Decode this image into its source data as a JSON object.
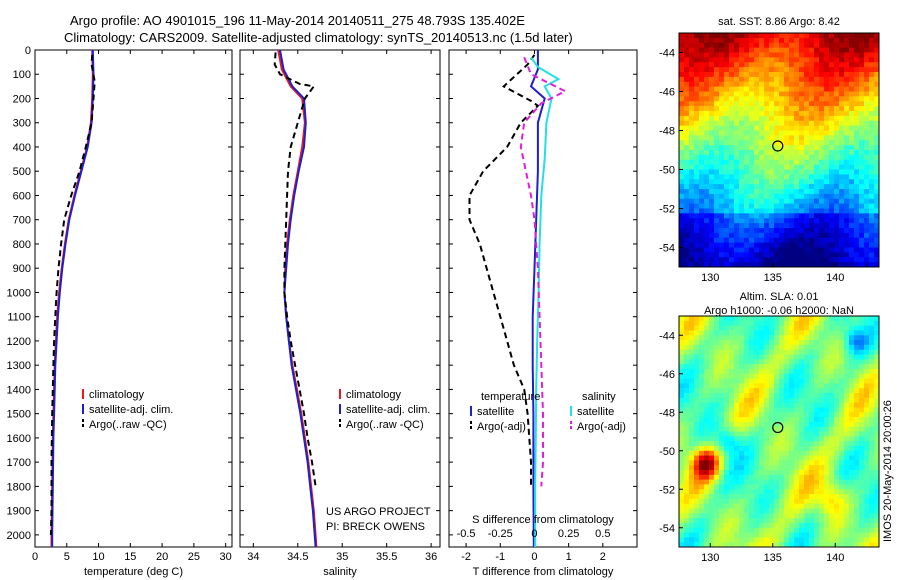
{
  "header": {
    "title_line1": "Argo profile: AO 4901015_196 11-May-2014 20140511_275 48.793S 135.402E",
    "title_line2": "Climatology: CARS2009. Satellite-adjusted climatology: synTS_20140513.nc (1.5d later)"
  },
  "side_stamp": "IMOS 20-May-2014 20:00:26",
  "chart_data": [
    {
      "type": "line",
      "id": "temperature",
      "xlabel": "temperature (deg C)",
      "ylabel": "",
      "xlim": [
        0,
        31
      ],
      "ylim": [
        2050,
        0
      ],
      "xticks": [
        0,
        5,
        10,
        15,
        20,
        25,
        30
      ],
      "yticks": [
        0,
        100,
        200,
        300,
        400,
        500,
        600,
        700,
        800,
        900,
        1000,
        1100,
        1200,
        1300,
        1400,
        1500,
        1600,
        1700,
        1800,
        1900,
        2000
      ],
      "legend": [
        "climatology",
        "satellite-adj. clim.",
        "Argo(..raw -QC)"
      ],
      "legend_position": "lower-center",
      "series": [
        {
          "name": "climatology",
          "color": "#e8191e",
          "style": "solid",
          "points": [
            [
              9.0,
              0
            ],
            [
              9.1,
              100
            ],
            [
              9.0,
              200
            ],
            [
              8.8,
              300
            ],
            [
              8.2,
              400
            ],
            [
              7.2,
              500
            ],
            [
              6.2,
              600
            ],
            [
              5.3,
              700
            ],
            [
              4.7,
              800
            ],
            [
              4.2,
              900
            ],
            [
              3.8,
              1000
            ],
            [
              3.5,
              1100
            ],
            [
              3.3,
              1200
            ],
            [
              3.1,
              1300
            ],
            [
              3.0,
              1400
            ],
            [
              2.9,
              1500
            ],
            [
              2.8,
              1600
            ],
            [
              2.7,
              1800
            ],
            [
              2.6,
              2000
            ],
            [
              2.6,
              2050
            ]
          ]
        },
        {
          "name": "satellite-adj. clim.",
          "color": "#1f1fcc",
          "style": "solid",
          "points": [
            [
              9.1,
              0
            ],
            [
              9.2,
              100
            ],
            [
              9.1,
              200
            ],
            [
              8.9,
              300
            ],
            [
              8.3,
              400
            ],
            [
              7.3,
              500
            ],
            [
              6.3,
              600
            ],
            [
              5.4,
              700
            ],
            [
              4.8,
              800
            ],
            [
              4.3,
              900
            ],
            [
              3.9,
              1000
            ],
            [
              3.6,
              1100
            ],
            [
              3.4,
              1200
            ],
            [
              3.2,
              1300
            ],
            [
              3.1,
              1400
            ],
            [
              3.0,
              1500
            ],
            [
              2.9,
              1600
            ],
            [
              2.8,
              1800
            ],
            [
              2.7,
              2000
            ],
            [
              2.7,
              2050
            ]
          ]
        },
        {
          "name": "Argo(..raw -QC)",
          "color": "#000000",
          "style": "dashed",
          "points": [
            [
              9.0,
              20
            ],
            [
              8.9,
              60
            ],
            [
              9.4,
              130
            ],
            [
              9.2,
              200
            ],
            [
              8.9,
              300
            ],
            [
              8.0,
              400
            ],
            [
              7.0,
              500
            ],
            [
              5.7,
              600
            ],
            [
              4.6,
              700
            ],
            [
              4.1,
              800
            ],
            [
              3.7,
              900
            ],
            [
              3.4,
              1000
            ],
            [
              3.2,
              1100
            ],
            [
              3.0,
              1200
            ],
            [
              2.9,
              1300
            ],
            [
              2.8,
              1400
            ],
            [
              2.7,
              1500
            ],
            [
              2.6,
              1700
            ],
            [
              2.6,
              1900
            ],
            [
              2.5,
              2000
            ]
          ]
        }
      ]
    },
    {
      "type": "line",
      "id": "salinity",
      "xlabel": "salinity",
      "xlim": [
        33.85,
        36.1
      ],
      "ylim": [
        2050,
        0
      ],
      "xticks": [
        34,
        34.5,
        35,
        35.5,
        36
      ],
      "legend": [
        "climatology",
        "satellite-adj. clim.",
        "Argo(..raw -QC)"
      ],
      "legend_position": "lower-right",
      "annotations": [
        "US ARGO PROJECT",
        "PI: BRECK OWENS"
      ],
      "series": [
        {
          "name": "climatology",
          "color": "#e8191e",
          "style": "solid",
          "points": [
            [
              34.28,
              0
            ],
            [
              34.32,
              80
            ],
            [
              34.42,
              150
            ],
            [
              34.55,
              200
            ],
            [
              34.58,
              300
            ],
            [
              34.55,
              400
            ],
            [
              34.5,
              500
            ],
            [
              34.45,
              600
            ],
            [
              34.41,
              700
            ],
            [
              34.38,
              800
            ],
            [
              34.36,
              900
            ],
            [
              34.35,
              1000
            ],
            [
              34.37,
              1100
            ],
            [
              34.4,
              1200
            ],
            [
              34.44,
              1300
            ],
            [
              34.49,
              1400
            ],
            [
              34.54,
              1500
            ],
            [
              34.58,
              1600
            ],
            [
              34.62,
              1700
            ],
            [
              34.65,
              1800
            ],
            [
              34.68,
              1900
            ],
            [
              34.7,
              2000
            ],
            [
              34.71,
              2050
            ]
          ]
        },
        {
          "name": "satellite-adj. clim.",
          "color": "#1f1fcc",
          "style": "solid",
          "points": [
            [
              34.3,
              0
            ],
            [
              34.34,
              80
            ],
            [
              34.44,
              150
            ],
            [
              34.57,
              200
            ],
            [
              34.59,
              300
            ],
            [
              34.57,
              400
            ],
            [
              34.51,
              500
            ],
            [
              34.46,
              600
            ],
            [
              34.42,
              700
            ],
            [
              34.39,
              800
            ],
            [
              34.37,
              900
            ],
            [
              34.35,
              1000
            ],
            [
              34.37,
              1100
            ],
            [
              34.4,
              1200
            ],
            [
              34.43,
              1300
            ],
            [
              34.48,
              1400
            ],
            [
              34.53,
              1500
            ],
            [
              34.57,
              1600
            ],
            [
              34.61,
              1700
            ],
            [
              34.64,
              1800
            ],
            [
              34.67,
              1900
            ],
            [
              34.69,
              2000
            ],
            [
              34.7,
              2050
            ]
          ]
        },
        {
          "name": "Argo(..raw -QC)",
          "color": "#000000",
          "style": "dashed",
          "points": [
            [
              34.25,
              10
            ],
            [
              34.24,
              60
            ],
            [
              34.3,
              100
            ],
            [
              34.52,
              140
            ],
            [
              34.68,
              150
            ],
            [
              34.58,
              200
            ],
            [
              34.5,
              300
            ],
            [
              34.42,
              400
            ],
            [
              34.39,
              500
            ],
            [
              34.38,
              600
            ],
            [
              34.37,
              700
            ],
            [
              34.36,
              800
            ],
            [
              34.35,
              900
            ],
            [
              34.35,
              1000
            ],
            [
              34.38,
              1100
            ],
            [
              34.42,
              1200
            ],
            [
              34.47,
              1300
            ],
            [
              34.52,
              1400
            ],
            [
              34.57,
              1500
            ],
            [
              34.61,
              1600
            ],
            [
              34.66,
              1700
            ],
            [
              34.7,
              1800
            ]
          ]
        }
      ]
    },
    {
      "type": "line",
      "id": "difference",
      "xlabel": "T difference from climatology",
      "xlabel_top": "S difference from climatology",
      "xlim": [
        -2.5,
        3.0
      ],
      "ylim": [
        2050,
        0
      ],
      "xticks": [
        -2,
        -1,
        0,
        1,
        2
      ],
      "top_xticks": [
        "-0.5",
        "-0.25",
        "0",
        "0.25",
        "0.5"
      ],
      "legend_header_left": "temperature",
      "legend_header_right": "salinity",
      "legend": [
        "satellite",
        "Argo(-adj)",
        "satellite",
        "Argo(-adj)"
      ],
      "series": [
        {
          "name": "satellite",
          "group": "temperature",
          "color": "#1f1fcc",
          "style": "solid",
          "points": [
            [
              0.1,
              0
            ],
            [
              0.1,
              80
            ],
            [
              -0.1,
              150
            ],
            [
              0.3,
              200
            ],
            [
              0.1,
              300
            ],
            [
              0.1,
              500
            ],
            [
              0.05,
              700
            ],
            [
              0.0,
              900
            ],
            [
              -0.05,
              1100
            ],
            [
              -0.05,
              1300
            ],
            [
              -0.03,
              1500
            ],
            [
              -0.03,
              1800
            ],
            [
              -0.02,
              2050
            ]
          ]
        },
        {
          "name": "Argo(-adj)",
          "group": "temperature",
          "color": "#000000",
          "style": "dashed",
          "points": [
            [
              0.0,
              20
            ],
            [
              -0.2,
              60
            ],
            [
              -0.9,
              150
            ],
            [
              -0.1,
              210
            ],
            [
              0.1,
              230
            ],
            [
              -0.4,
              300
            ],
            [
              -0.8,
              400
            ],
            [
              -1.5,
              500
            ],
            [
              -1.9,
              600
            ],
            [
              -1.9,
              700
            ],
            [
              -1.6,
              800
            ],
            [
              -1.4,
              900
            ],
            [
              -1.2,
              1000
            ],
            [
              -1.0,
              1100
            ],
            [
              -0.8,
              1200
            ],
            [
              -0.6,
              1300
            ],
            [
              -0.3,
              1400
            ],
            [
              -0.2,
              1500
            ],
            [
              -0.1,
              1700
            ],
            [
              -0.1,
              1800
            ]
          ]
        },
        {
          "name": "satellite",
          "group": "salinity",
          "color": "#22e0e6",
          "style": "solid",
          "points": [
            [
              -0.1,
              30
            ],
            [
              0.1,
              70
            ],
            [
              0.7,
              120
            ],
            [
              0.3,
              150
            ],
            [
              0.5,
              200
            ],
            [
              0.35,
              300
            ],
            [
              0.3,
              450
            ],
            [
              0.2,
              600
            ],
            [
              0.15,
              800
            ],
            [
              0.12,
              1000
            ],
            [
              0.08,
              1200
            ],
            [
              0.05,
              1400
            ],
            [
              0.04,
              1600
            ],
            [
              0.02,
              1800
            ],
            [
              0.02,
              2050
            ]
          ]
        },
        {
          "name": "Argo(-adj)",
          "group": "salinity",
          "color": "#e020d8",
          "style": "dashed",
          "points": [
            [
              -0.3,
              30
            ],
            [
              -0.1,
              100
            ],
            [
              0.9,
              170
            ],
            [
              0.2,
              220
            ],
            [
              -0.3,
              300
            ],
            [
              -0.4,
              400
            ],
            [
              -0.25,
              500
            ],
            [
              -0.1,
              600
            ],
            [
              0.0,
              700
            ],
            [
              0.1,
              900
            ],
            [
              0.15,
              1100
            ],
            [
              0.2,
              1300
            ],
            [
              0.25,
              1500
            ],
            [
              0.25,
              1700
            ],
            [
              0.2,
              1800
            ]
          ]
        }
      ]
    },
    {
      "type": "heatmap",
      "id": "sst_map",
      "title": "sat. SST: 8.86 Argo: 8.42",
      "xlim": [
        127.5,
        143.5
      ],
      "ylim": [
        -55,
        -43
      ],
      "xticks": [
        130,
        135,
        140
      ],
      "yticks": [
        -44,
        -46,
        -48,
        -50,
        -52,
        -54
      ],
      "marker": [
        135.402,
        -48.793
      ]
    },
    {
      "type": "heatmap",
      "id": "sla_map",
      "title_line1": "Altim. SLA: 0.01",
      "title_line2": "Argo h1000: -0.06 h2000: NaN",
      "xlim": [
        127.5,
        143.5
      ],
      "ylim": [
        -55,
        -43
      ],
      "xticks": [
        130,
        135,
        140
      ],
      "yticks": [
        -44,
        -46,
        -48,
        -50,
        -52,
        -54
      ],
      "marker": [
        135.402,
        -48.793
      ]
    }
  ]
}
